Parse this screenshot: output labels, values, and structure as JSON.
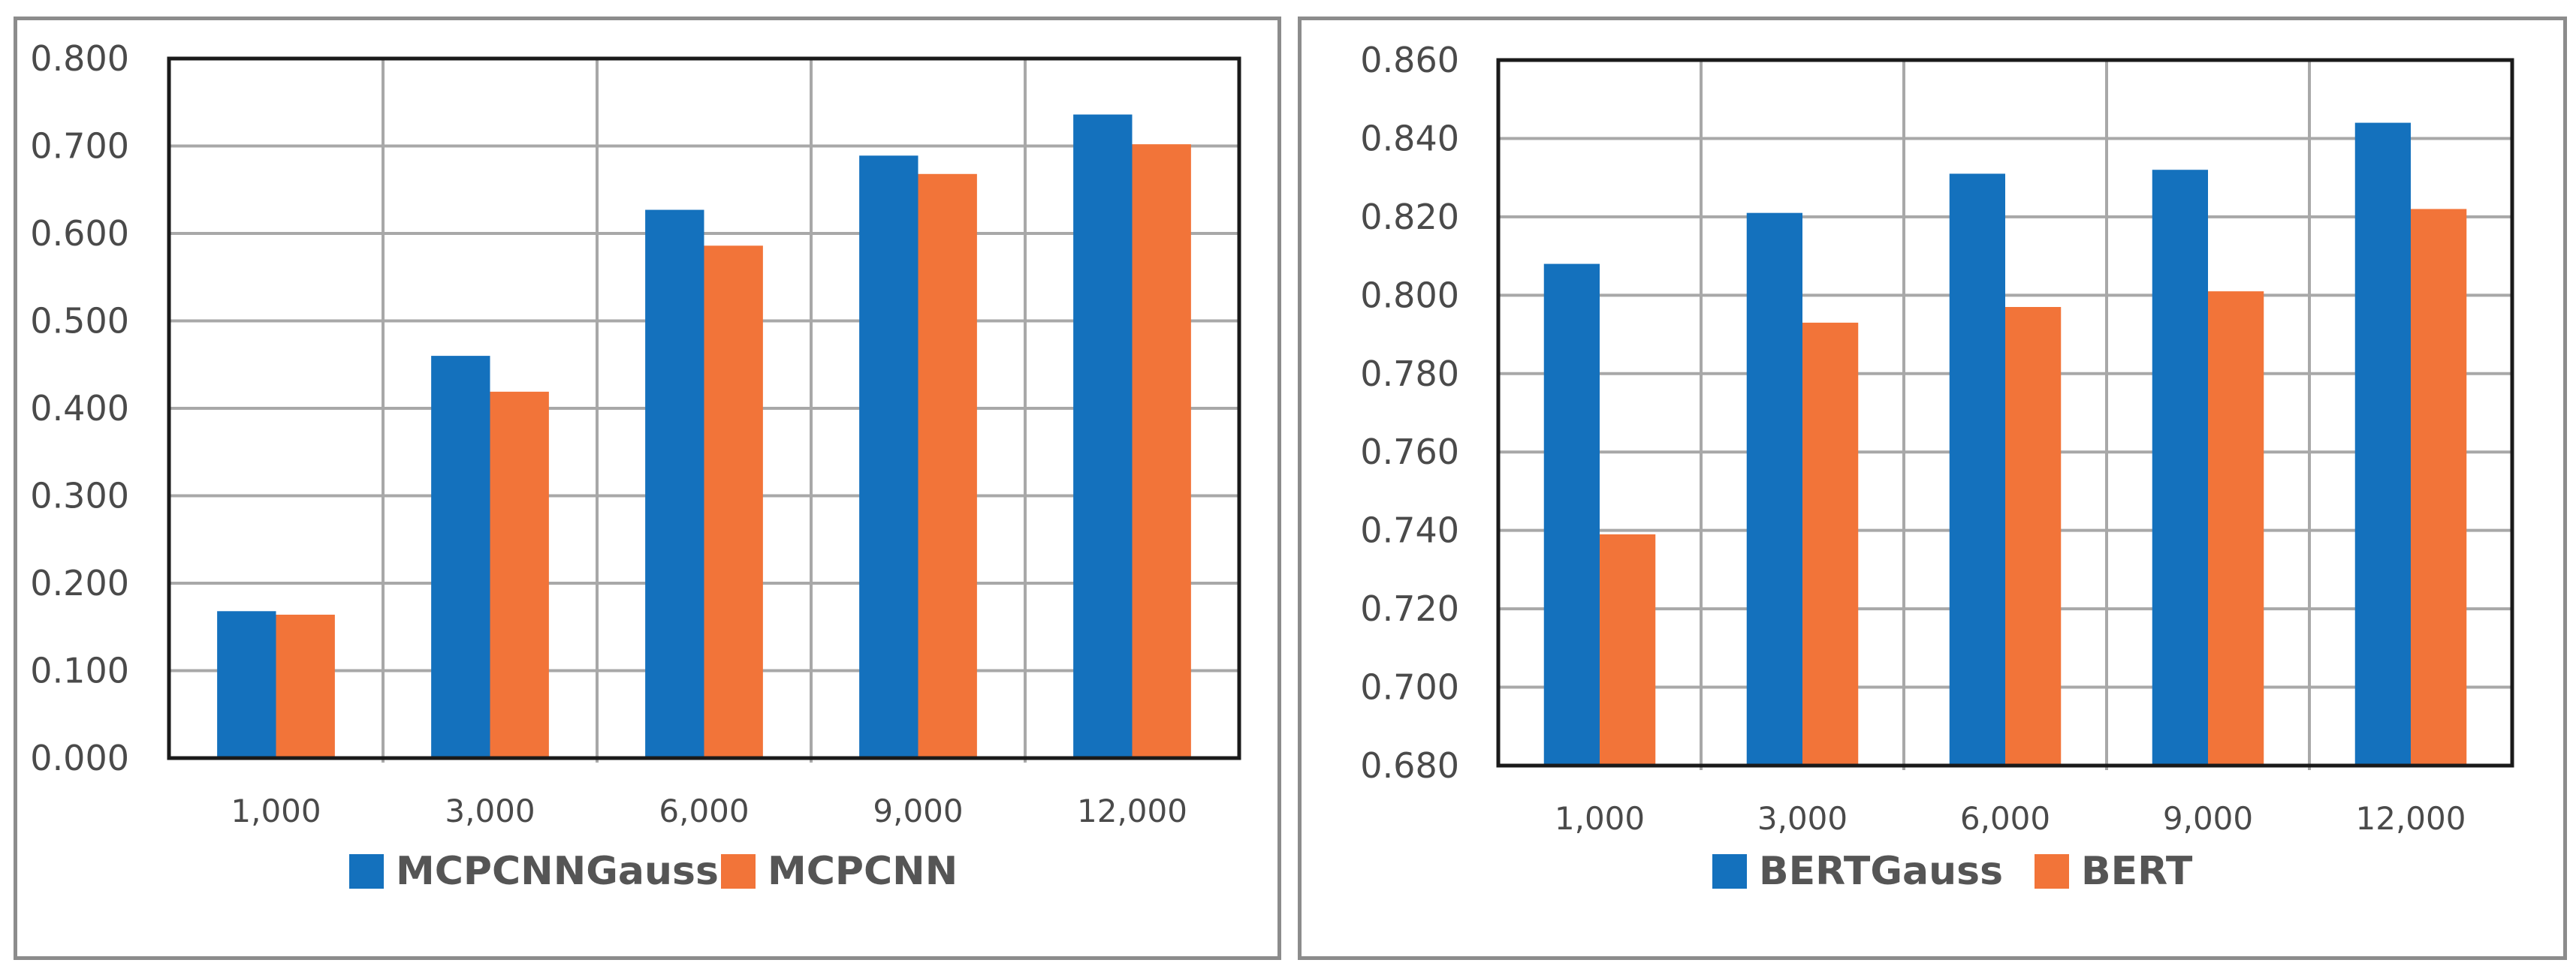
{
  "chart_data": [
    {
      "type": "bar",
      "categories": [
        "1,000",
        "3,000",
        "6,000",
        "9,000",
        "12,000"
      ],
      "series": [
        {
          "name": "MCPCNNGauss",
          "values": [
            0.168,
            0.46,
            0.627,
            0.689,
            0.736
          ],
          "color": "#1471bd"
        },
        {
          "name": "MCPCNN",
          "values": [
            0.164,
            0.419,
            0.586,
            0.668,
            0.702
          ],
          "color": "#f27439"
        }
      ],
      "ylim": [
        0,
        0.8
      ],
      "yticks": [
        "0.000",
        "0.100",
        "0.200",
        "0.300",
        "0.400",
        "0.500",
        "0.600",
        "0.700",
        "0.800"
      ],
      "grid": true,
      "legend": "bottom"
    },
    {
      "type": "bar",
      "categories": [
        "1,000",
        "3,000",
        "6,000",
        "9,000",
        "12,000"
      ],
      "series": [
        {
          "name": "BERTGauss",
          "values": [
            0.808,
            0.821,
            0.831,
            0.832,
            0.844
          ],
          "color": "#1471bd"
        },
        {
          "name": "BERT",
          "values": [
            0.739,
            0.793,
            0.797,
            0.801,
            0.822
          ],
          "color": "#f27439"
        }
      ],
      "ylim": [
        0.68,
        0.86
      ],
      "yticks": [
        "0.680",
        "0.700",
        "0.720",
        "0.740",
        "0.760",
        "0.780",
        "0.800",
        "0.820",
        "0.840",
        "0.860"
      ],
      "grid": true,
      "legend": "bottom"
    }
  ]
}
